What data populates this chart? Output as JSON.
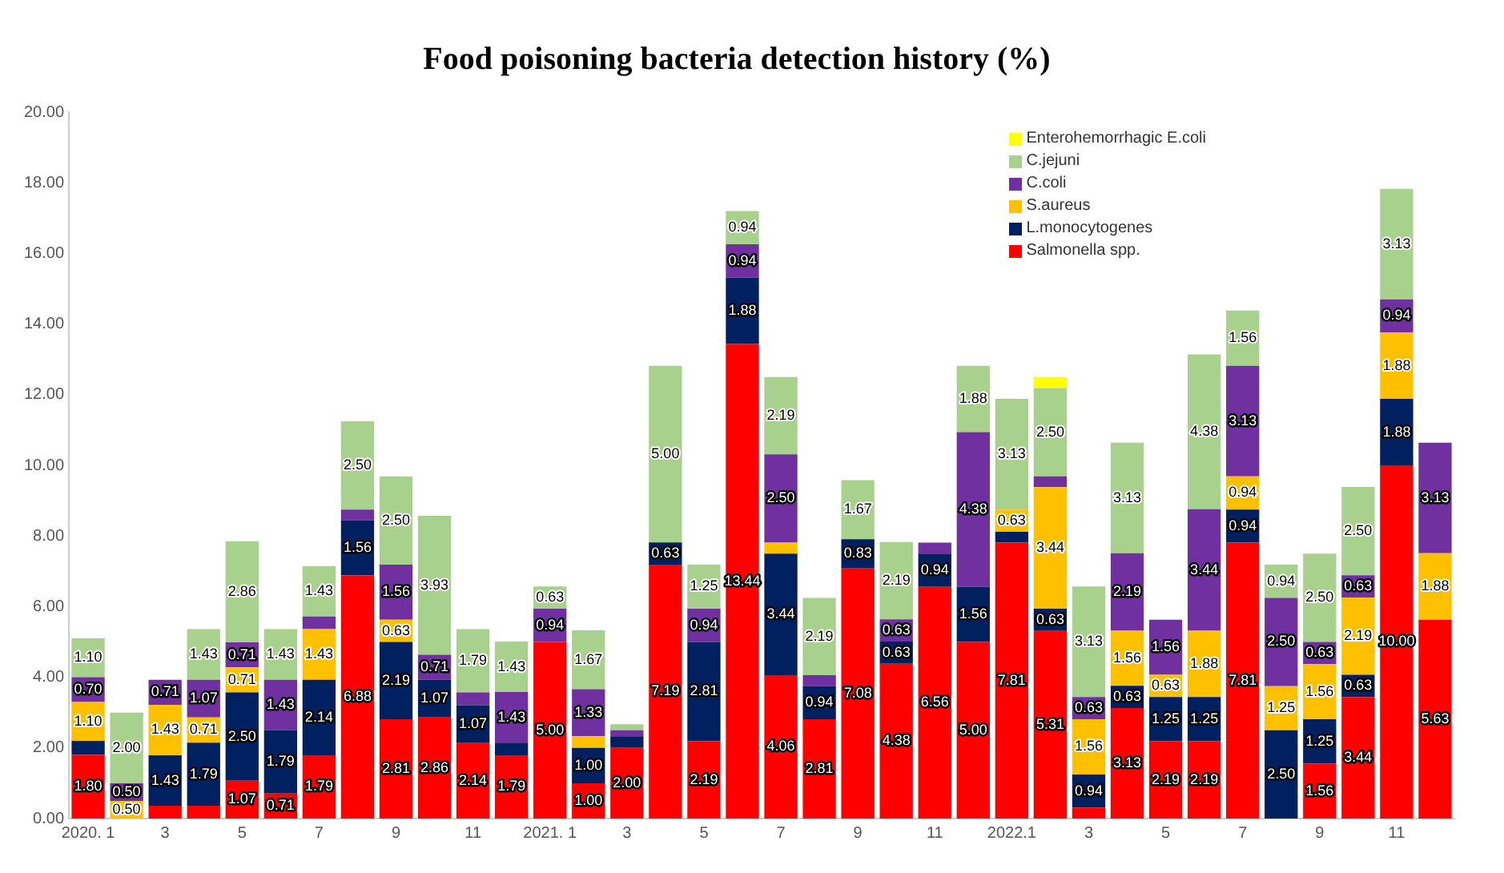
{
  "chart_data": {
    "type": "bar",
    "title": "Food poisoning bacteria detection history (%)",
    "stacked": true,
    "legend": "top right",
    "grid": false,
    "categories": [
      "2020. 1",
      null,
      "3",
      null,
      "5",
      null,
      "7",
      null,
      "9",
      null,
      "11",
      null,
      "2021. 1",
      null,
      "3",
      null,
      "5",
      null,
      "7",
      null,
      "9",
      null,
      "11",
      null,
      "2022.1",
      null,
      "3",
      null,
      "5",
      null,
      "7",
      null,
      "9",
      null,
      "11",
      null
    ],
    "ylim": [
      0,
      20
    ],
    "yticks": [
      {
        "value": 0,
        "label": "0.00"
      },
      {
        "value": 2,
        "label": "2.00"
      },
      {
        "value": 4,
        "label": "4.00"
      },
      {
        "value": 6,
        "label": "6.00"
      },
      {
        "value": 8,
        "label": "8.00"
      },
      {
        "value": 10,
        "label": "10.00"
      },
      {
        "value": 12,
        "label": "12.00"
      },
      {
        "value": 14,
        "label": "14.00"
      },
      {
        "value": 16,
        "label": "16.00"
      },
      {
        "value": 18,
        "label": "18.00"
      },
      {
        "value": 20,
        "label": "20.00"
      }
    ],
    "series": [
      {
        "name": "Salmonella spp.",
        "color": "#ff0000",
        "values": [
          1.8,
          0,
          0.36,
          0.36,
          1.07,
          0.71,
          1.79,
          6.88,
          2.81,
          2.86,
          2.14,
          1.79,
          5.0,
          1.0,
          2.0,
          7.19,
          2.19,
          13.44,
          4.06,
          2.81,
          7.08,
          4.38,
          6.56,
          5.0,
          7.81,
          5.31,
          0.31,
          3.13,
          2.19,
          2.19,
          7.81,
          0,
          1.56,
          3.44,
          10.0,
          5.63
        ],
        "value_labels": [
          "1.80",
          null,
          null,
          null,
          "1.07",
          "0.71",
          "1.79",
          "6.88",
          "2.81",
          "2.86",
          "2.14",
          "1.79",
          "5.00",
          "1.00",
          "2.00",
          "7.19",
          "2.19",
          "13.44",
          "4.06",
          "2.81",
          "7.08",
          "4.38",
          "6.56",
          "5.00",
          "7.81",
          "5.31",
          null,
          "3.13",
          "2.19",
          "2.19",
          "7.81",
          null,
          "1.56",
          "3.44",
          "10.00",
          "5.63"
        ]
      },
      {
        "name": "L.monocytogenes",
        "color": "#002060",
        "values": [
          0.4,
          0,
          1.43,
          1.79,
          2.5,
          1.79,
          2.14,
          1.56,
          2.19,
          1.07,
          1.07,
          0.36,
          0,
          1.0,
          0.33,
          0.63,
          2.81,
          1.88,
          3.44,
          0.94,
          0.83,
          0.63,
          0.94,
          1.56,
          0.31,
          0.63,
          0.94,
          0.63,
          1.25,
          1.25,
          0.94,
          2.5,
          1.25,
          0.63,
          1.88,
          0
        ],
        "value_labels": [
          null,
          null,
          "1.43",
          "1.79",
          "2.50",
          "1.79",
          "2.14",
          "1.56",
          "2.19",
          "1.07",
          "1.07",
          null,
          null,
          "1.00",
          null,
          "0.63",
          "2.81",
          "1.88",
          "3.44",
          "0.94",
          "0.83",
          "0.63",
          "0.94",
          "1.56",
          null,
          "0.63",
          "0.94",
          "0.63",
          "1.25",
          "1.25",
          "0.94",
          "2.50",
          "1.25",
          "0.63",
          "1.88",
          null
        ]
      },
      {
        "name": "S.aureus",
        "color": "#ffc000",
        "values": [
          1.1,
          0.5,
          1.43,
          0.71,
          0.71,
          0,
          1.43,
          0,
          0.63,
          0,
          0,
          0,
          0,
          0.33,
          0,
          0,
          0,
          0,
          0.31,
          0,
          0,
          0,
          0,
          0,
          0.63,
          3.44,
          1.56,
          1.56,
          0.63,
          1.88,
          0.94,
          1.25,
          1.56,
          2.19,
          1.88,
          1.88
        ],
        "value_labels": [
          "1.10",
          "0.50",
          "1.43",
          "0.71",
          "0.71",
          null,
          "1.43",
          null,
          "0.63",
          null,
          null,
          null,
          null,
          null,
          null,
          null,
          null,
          null,
          null,
          null,
          null,
          null,
          null,
          null,
          "0.63",
          "3.44",
          "1.56",
          "1.56",
          "0.63",
          "1.88",
          "0.94",
          "1.25",
          "1.56",
          "2.19",
          "1.88",
          "1.88"
        ]
      },
      {
        "name": "C.coli",
        "color": "#7030a0",
        "values": [
          0.7,
          0.5,
          0.71,
          1.07,
          0.71,
          1.43,
          0.36,
          0.31,
          1.56,
          0.71,
          0.36,
          1.43,
          0.94,
          1.33,
          0.17,
          0,
          0.94,
          0.94,
          2.5,
          0.31,
          0,
          0.63,
          0.31,
          4.38,
          0,
          0.31,
          0.63,
          2.19,
          1.56,
          3.44,
          3.13,
          2.5,
          0.63,
          0.63,
          0.94,
          3.13
        ],
        "value_labels": [
          "0.70",
          "0.50",
          "0.71",
          "1.07",
          "0.71",
          "1.43",
          null,
          null,
          "1.56",
          "0.71",
          null,
          "1.43",
          "0.94",
          "1.33",
          null,
          null,
          "0.94",
          "0.94",
          "2.50",
          null,
          null,
          "0.63",
          null,
          "4.38",
          null,
          null,
          "0.63",
          "2.19",
          "1.56",
          "3.44",
          "3.13",
          "2.50",
          "0.63",
          "0.63",
          "0.94",
          "3.13"
        ]
      },
      {
        "name": "C.jejuni",
        "color": "#a9d18e",
        "values": [
          1.1,
          2.0,
          0,
          1.43,
          2.86,
          1.43,
          1.43,
          2.5,
          2.5,
          3.93,
          1.79,
          1.43,
          0.63,
          1.67,
          0.17,
          5.0,
          1.25,
          0.94,
          2.19,
          2.19,
          1.67,
          2.19,
          0,
          1.88,
          3.13,
          2.5,
          3.13,
          3.13,
          0,
          4.38,
          1.56,
          0.94,
          2.5,
          2.5,
          3.13,
          0
        ],
        "value_labels": [
          "1.10",
          "2.00",
          null,
          "1.43",
          "2.86",
          "1.43",
          "1.43",
          "2.50",
          "2.50",
          "3.93",
          "1.79",
          "1.43",
          "0.63",
          "1.67",
          null,
          "5.00",
          "1.25",
          "0.94",
          "2.19",
          "2.19",
          "1.67",
          "2.19",
          null,
          "1.88",
          "3.13",
          "2.50",
          "3.13",
          "3.13",
          null,
          "4.38",
          "1.56",
          "0.94",
          "2.50",
          "2.50",
          "3.13",
          null
        ]
      },
      {
        "name": "Enterohemorrhagic E.coli",
        "color": "#ffff00",
        "values": [
          0,
          0,
          0,
          0,
          0,
          0,
          0,
          0,
          0,
          0,
          0,
          0,
          0,
          0,
          0,
          0,
          0,
          0,
          0,
          0,
          0,
          0,
          0,
          0,
          0,
          0.31,
          0,
          0,
          0,
          0,
          0,
          0,
          0,
          0,
          0,
          0
        ]
      }
    ]
  }
}
